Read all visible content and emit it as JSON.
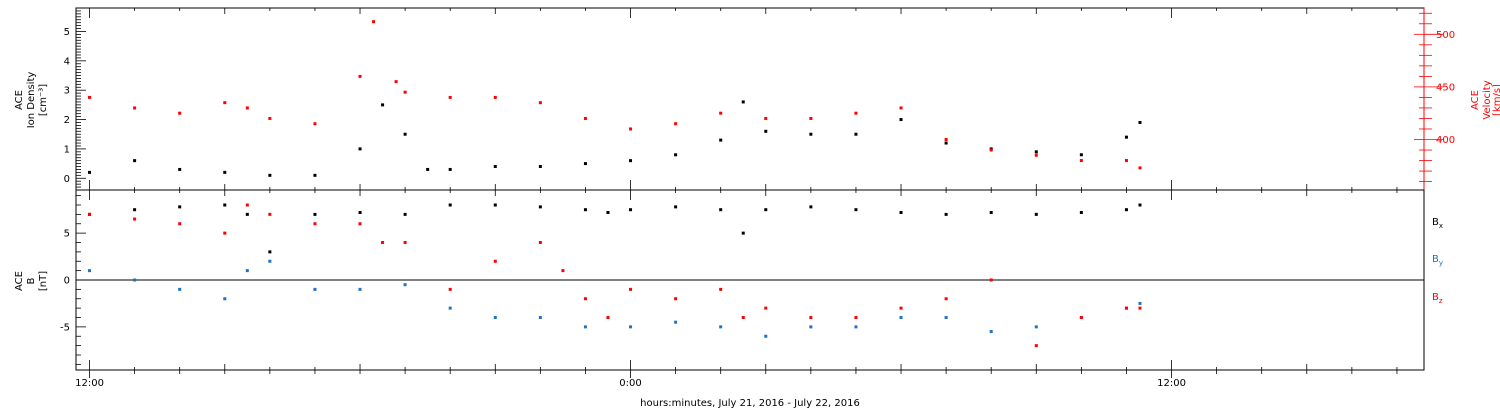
{
  "chart_data": [
    {
      "type": "scatter",
      "panel": "top",
      "ylabel": [
        "ACE",
        "Ion Density",
        "[cm⁻³]"
      ],
      "ylabel_right": [
        "ACE",
        "Velocity",
        "[km/s]"
      ],
      "ylim": [
        -0.4,
        5.8
      ],
      "yticks": [
        "0",
        "1",
        "2",
        "3",
        "4",
        "5"
      ],
      "ylim_right": [
        352,
        525
      ],
      "yticks_right": [
        "400",
        "450",
        "500"
      ],
      "series": [
        {
          "axis": "left",
          "color": "#000000",
          "x": [
            0,
            1,
            2,
            3,
            4,
            5,
            6,
            6.5,
            7,
            7.5,
            8,
            9,
            10,
            11,
            12,
            13,
            14,
            14.5,
            15,
            16,
            17,
            18,
            19,
            20,
            21,
            22,
            23,
            23.3
          ],
          "y": [
            0.2,
            0.6,
            0.3,
            0.2,
            0.1,
            0.1,
            1.0,
            2.5,
            1.5,
            0.3,
            0.3,
            0.4,
            0.4,
            0.5,
            0.6,
            0.8,
            1.3,
            2.6,
            1.6,
            1.5,
            1.5,
            2.0,
            1.2,
            1.0,
            0.9,
            0.8,
            1.4,
            1.9
          ]
        },
        {
          "axis": "right",
          "color": "#ff0000",
          "x": [
            0,
            1,
            2,
            3,
            3.5,
            4,
            5,
            6,
            6.3,
            6.8,
            7,
            8,
            9,
            10,
            11,
            12,
            13,
            14,
            15,
            16,
            17,
            18,
            19,
            20,
            21,
            22,
            23,
            23.3
          ],
          "y": [
            440,
            430,
            425,
            435,
            430,
            420,
            415,
            460,
            512,
            455,
            445,
            440,
            440,
            435,
            420,
            410,
            415,
            425,
            420,
            420,
            425,
            430,
            400,
            390,
            385,
            380,
            380,
            373
          ]
        }
      ]
    },
    {
      "type": "scatter",
      "panel": "bottom",
      "ylabel": [
        "ACE",
        "B",
        "[nT]"
      ],
      "ylim": [
        -9.6,
        9.6
      ],
      "yticks": [
        "-5",
        "0",
        "5"
      ],
      "legend_placement": "right",
      "series": [
        {
          "name": "B",
          "subscript": "x",
          "color": "#000000",
          "x": [
            0,
            1,
            2,
            3,
            3.5,
            4,
            5,
            6,
            7,
            8,
            9,
            10,
            11,
            11.5,
            12,
            13,
            14,
            14.5,
            15,
            16,
            17,
            18,
            19,
            20,
            21,
            22,
            23,
            23.3
          ],
          "y": [
            7,
            7.5,
            7.8,
            8,
            7,
            3,
            7,
            7.2,
            7,
            8,
            8,
            7.8,
            7.5,
            7.2,
            7.5,
            7.8,
            7.5,
            5,
            7.5,
            7.8,
            7.5,
            7.2,
            7,
            7.2,
            7,
            7.2,
            7.5,
            8
          ]
        },
        {
          "name": "B",
          "subscript": "y",
          "color": "#1e73c8",
          "x": [
            0,
            1,
            2,
            3,
            3.5,
            4,
            5,
            6,
            7,
            8,
            9,
            10,
            11,
            12,
            13,
            14,
            15,
            16,
            17,
            18,
            19,
            20,
            21,
            22,
            23,
            23.3
          ],
          "y": [
            1,
            0,
            -1,
            -2,
            1,
            2,
            -1,
            -1,
            -0.5,
            -3,
            -4,
            -4,
            -5,
            -5,
            -4.5,
            -5,
            -6,
            -5,
            -5,
            -4,
            -4,
            -5.5,
            -5,
            -4,
            -3,
            -2.5
          ]
        },
        {
          "name": "B",
          "subscript": "z",
          "color": "#ff0000",
          "x": [
            0,
            1,
            2,
            3,
            3.5,
            4,
            5,
            6,
            6.5,
            7,
            8,
            9,
            10,
            10.5,
            11,
            11.5,
            12,
            13,
            14,
            14.5,
            15,
            16,
            17,
            18,
            19,
            20,
            21,
            22,
            23,
            23.3
          ],
          "y": [
            7,
            6.5,
            6,
            5,
            8,
            7,
            6,
            6,
            4,
            4,
            -1,
            2,
            4,
            1,
            -2,
            -4,
            -1,
            -2,
            -1,
            -4,
            -3,
            -4,
            -4,
            -3,
            -2,
            0,
            -7,
            -4,
            -3,
            -3
          ]
        }
      ]
    }
  ],
  "xaxis": {
    "label": "hours:minutes, July 21, 2016 - July 22, 2016",
    "ticklabels": [
      {
        "hour": 0,
        "text": "12:00"
      },
      {
        "hour": 12,
        "text": "0:00"
      },
      {
        "hour": 24,
        "text": "12:00"
      }
    ],
    "xlim": [
      -0.3,
      29.6
    ]
  }
}
